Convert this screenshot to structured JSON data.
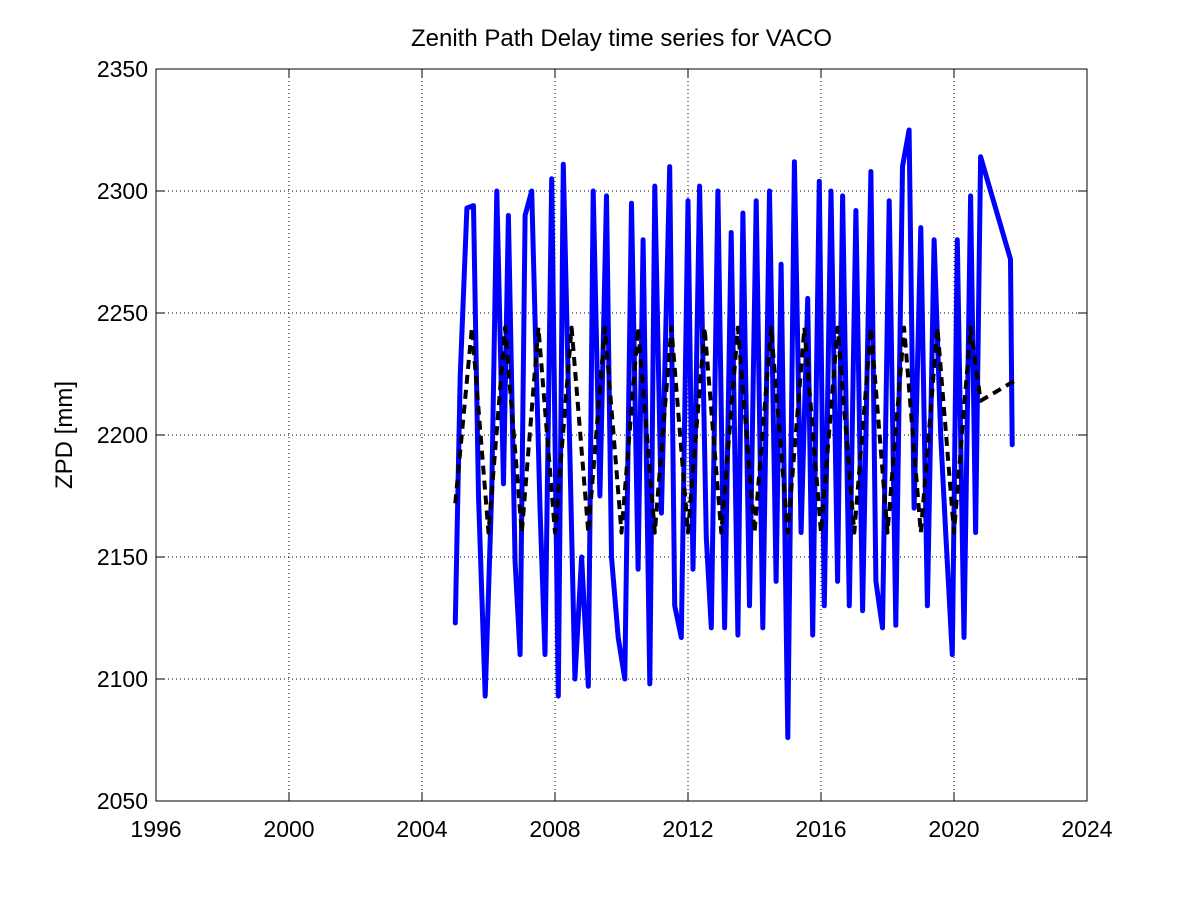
{
  "chart_data": {
    "type": "line",
    "title": "Zenith Path Delay time series for VACO",
    "xlabel": "",
    "ylabel": "ZPD [mm]",
    "xlim": [
      1996,
      2024
    ],
    "ylim": [
      2050,
      2350
    ],
    "x_ticks": [
      "1996",
      "2000",
      "2004",
      "2008",
      "2012",
      "2016",
      "2020",
      "2024"
    ],
    "y_ticks": [
      "2050",
      "2100",
      "2150",
      "2200",
      "2250",
      "2300",
      "2350"
    ],
    "grid": true,
    "legend": "none",
    "series": [
      {
        "style": "solid",
        "color": "#0000ff",
        "x": [
          2005.0,
          2005.15,
          2005.35,
          2005.55,
          2005.7,
          2005.9,
          2006.1,
          2006.25,
          2006.45,
          2006.6,
          2006.8,
          2006.95,
          2007.1,
          2007.3,
          2007.55,
          2007.7,
          2007.9,
          2008.1,
          2008.25,
          2008.45,
          2008.6,
          2008.8,
          2009.0,
          2009.15,
          2009.35,
          2009.55,
          2009.7,
          2009.9,
          2010.1,
          2010.3,
          2010.5,
          2010.65,
          2010.85,
          2011.0,
          2011.2,
          2011.45,
          2011.6,
          2011.8,
          2012.0,
          2012.15,
          2012.35,
          2012.55,
          2012.7,
          2012.9,
          2013.1,
          2013.3,
          2013.5,
          2013.65,
          2013.85,
          2014.05,
          2014.25,
          2014.45,
          2014.65,
          2014.8,
          2015.0,
          2015.2,
          2015.4,
          2015.6,
          2015.75,
          2015.95,
          2016.1,
          2016.3,
          2016.5,
          2016.65,
          2016.85,
          2017.05,
          2017.25,
          2017.5,
          2017.65,
          2017.85,
          2018.05,
          2018.25,
          2018.45,
          2018.65,
          2018.8,
          2019.0,
          2019.2,
          2019.4,
          2019.6,
          2019.75,
          2019.95,
          2020.1,
          2020.3,
          2020.5,
          2020.65,
          2020.8,
          2021.7,
          2021.75
        ],
        "values": [
          2123,
          2224,
          2293,
          2294,
          2175,
          2093,
          2178,
          2300,
          2180,
          2290,
          2148,
          2110,
          2290,
          2300,
          2170,
          2110,
          2305,
          2093,
          2311,
          2190,
          2100,
          2150,
          2097,
          2300,
          2175,
          2298,
          2150,
          2117,
          2100,
          2295,
          2145,
          2280,
          2098,
          2302,
          2168,
          2310,
          2130,
          2117,
          2296,
          2145,
          2302,
          2158,
          2121,
          2300,
          2121,
          2283,
          2118,
          2291,
          2130,
          2296,
          2121,
          2300,
          2140,
          2270,
          2076,
          2312,
          2160,
          2256,
          2118,
          2304,
          2130,
          2300,
          2140,
          2298,
          2130,
          2292,
          2128,
          2308,
          2140,
          2121,
          2296,
          2122,
          2310,
          2325,
          2170,
          2285,
          2130,
          2280,
          2200,
          2160,
          2110,
          2280,
          2117,
          2298,
          2160,
          2314,
          2272,
          2196
        ]
      },
      {
        "style": "dashed",
        "color": "#000000",
        "x": [
          2005.0,
          2005.5,
          2006.0,
          2006.5,
          2007.0,
          2007.5,
          2008.0,
          2008.5,
          2009.0,
          2009.5,
          2010.0,
          2010.5,
          2011.0,
          2011.5,
          2012.0,
          2012.5,
          2013.0,
          2013.5,
          2014.0,
          2014.5,
          2015.0,
          2015.5,
          2016.0,
          2016.5,
          2017.0,
          2017.5,
          2018.0,
          2018.5,
          2019.0,
          2019.5,
          2020.0,
          2020.5,
          2020.8,
          2021.8
        ],
        "values": [
          2172,
          2244,
          2160,
          2244,
          2160,
          2244,
          2160,
          2244,
          2160,
          2244,
          2160,
          2244,
          2160,
          2244,
          2160,
          2244,
          2160,
          2244,
          2160,
          2244,
          2160,
          2244,
          2160,
          2244,
          2160,
          2244,
          2160,
          2244,
          2160,
          2244,
          2160,
          2244,
          2214,
          2222
        ]
      }
    ]
  }
}
